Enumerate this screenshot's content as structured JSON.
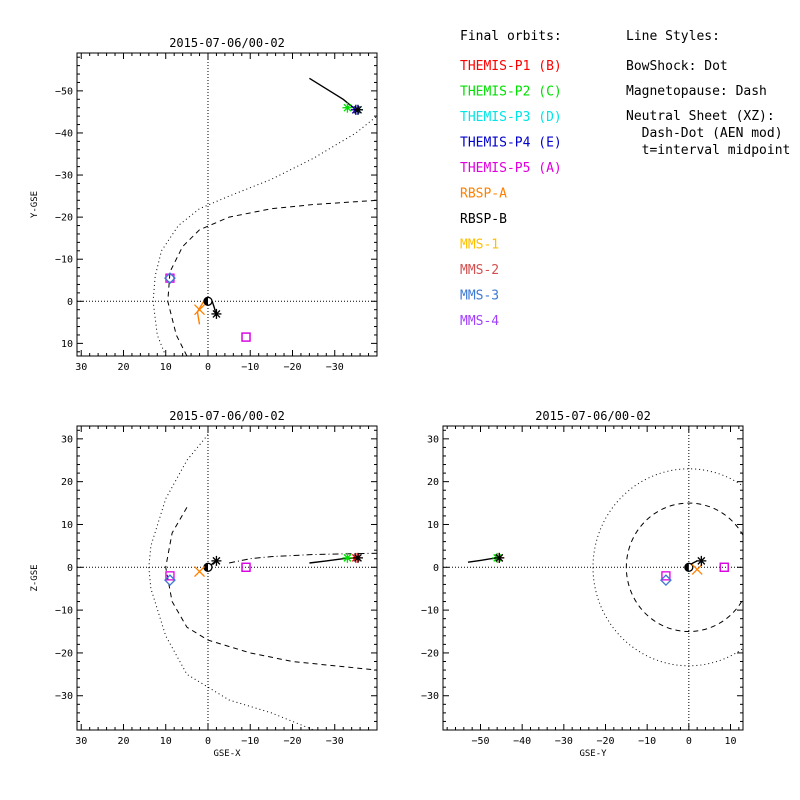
{
  "legend": {
    "orbits_title": "Final orbits:",
    "styles_title": "Line Styles:",
    "spacecraft": [
      {
        "label": "THEMIS-P1 (B)",
        "color": "#ff0000"
      },
      {
        "label": "THEMIS-P2 (C)",
        "color": "#00e000"
      },
      {
        "label": "THEMIS-P3 (D)",
        "color": "#00e5e5"
      },
      {
        "label": "THEMIS-P4 (E)",
        "color": "#0000cc"
      },
      {
        "label": "THEMIS-P5 (A)",
        "color": "#e000e0"
      },
      {
        "label": "RBSP-A",
        "color": "#ff8000"
      },
      {
        "label": "RBSP-B",
        "color": "#000000"
      },
      {
        "label": "MMS-1",
        "color": "#ffbf00"
      },
      {
        "label": "MMS-2",
        "color": "#d25050"
      },
      {
        "label": "MMS-3",
        "color": "#3c7ad4"
      },
      {
        "label": "MMS-4",
        "color": "#a040ff"
      }
    ],
    "styles": [
      "BowShock: Dot",
      "Magnetopause: Dash",
      "Neutral Sheet (XZ):",
      "  Dash-Dot (AEN mod)",
      "  t=interval midpoint"
    ]
  },
  "chart_data": [
    {
      "id": "xy",
      "type": "scatter",
      "title": "2015-07-06/00-02",
      "xlabel": "",
      "ylabel": "Y-GSE",
      "xlim": [
        31,
        -40
      ],
      "ylim": [
        13,
        -59
      ],
      "xticks": [
        30,
        20,
        10,
        0,
        -10,
        -20,
        -30
      ],
      "yticks": [
        -50,
        -40,
        -30,
        -20,
        -10,
        0,
        10
      ],
      "grid": "dotted zero lines",
      "boundaries": {
        "bowshock": {
          "style": "dot",
          "points": [
            [
              10.0,
              13.0
            ],
            [
              12.0,
              8.0
            ],
            [
              13.0,
              0.0
            ],
            [
              12.5,
              -6.0
            ],
            [
              11.0,
              -12.0
            ],
            [
              7.0,
              -18.0
            ],
            [
              2.0,
              -22.0
            ],
            [
              -5.0,
              -25.0
            ],
            [
              -15.0,
              -29.0
            ],
            [
              -25.0,
              -34.0
            ],
            [
              -35.0,
              -40.0
            ],
            [
              -40.0,
              -44.0
            ]
          ]
        },
        "magnetopause": {
          "style": "dash",
          "points": [
            [
              5.0,
              13.0
            ],
            [
              7.5,
              8.0
            ],
            [
              9.5,
              0.0
            ],
            [
              9.0,
              -7.0
            ],
            [
              6.0,
              -13.0
            ],
            [
              2.0,
              -17.0
            ],
            [
              -5.0,
              -20.0
            ],
            [
              -15.0,
              -22.0
            ],
            [
              -25.0,
              -23.0
            ],
            [
              -40.0,
              -24.0
            ]
          ]
        }
      },
      "tracks": [
        {
          "name": "THEMIS-P5 (A)",
          "color": "#000000",
          "points": [
            [
              -24.0,
              -53.0
            ],
            [
              -28.0,
              -50.5
            ],
            [
              -32.0,
              -48.0
            ],
            [
              -35.0,
              -45.5
            ]
          ]
        },
        {
          "name": "RBSP-A",
          "color": "#ff8000",
          "points": [
            [
              1.0,
              0.0
            ],
            [
              2.5,
              2.5
            ],
            [
              2.0,
              5.5
            ]
          ]
        },
        {
          "name": "RBSP-B",
          "color": "#000000",
          "points": [
            [
              -1.0,
              0.0
            ],
            [
              -1.5,
              1.5
            ],
            [
              -2.0,
              3.5
            ]
          ]
        }
      ],
      "markers": [
        {
          "name": "THEMIS-P1 (B)",
          "x": -35.0,
          "y": -45.5,
          "symbol": "asterisk",
          "color": "#ff0000"
        },
        {
          "name": "THEMIS-P2 (C)",
          "x": -33.0,
          "y": -46.0,
          "symbol": "asterisk",
          "color": "#00e000"
        },
        {
          "name": "THEMIS-P3 (D)",
          "x": -35.5,
          "y": -45.5,
          "symbol": "asterisk",
          "color": "#00e5e5"
        },
        {
          "name": "THEMIS-P4 (E)",
          "x": -35.0,
          "y": -45.5,
          "symbol": "asterisk",
          "color": "#0000cc"
        },
        {
          "name": "THEMIS-P5 (A)",
          "x": -35.5,
          "y": -45.5,
          "symbol": "asterisk",
          "color": "#000000"
        },
        {
          "name": "RBSP-A",
          "x": 2.0,
          "y": 2.0,
          "symbol": "x",
          "color": "#ff8000"
        },
        {
          "name": "RBSP-B",
          "x": -2.0,
          "y": 3.0,
          "symbol": "asterisk",
          "color": "#000000"
        },
        {
          "name": "MMS-1",
          "x": 9.0,
          "y": -5.5,
          "symbol": "square",
          "color": "#e000e0"
        },
        {
          "name": "MMS-2",
          "x": 9.0,
          "y": -5.5,
          "symbol": "diamond",
          "color": "#3c7ad4"
        },
        {
          "name": "MMS-3",
          "x": -9.0,
          "y": 8.5,
          "symbol": "square",
          "color": "#a040ff"
        },
        {
          "name": "MMS-4",
          "x": -9.0,
          "y": 8.5,
          "symbol": "square",
          "color": "#e000e0"
        }
      ],
      "earth": {
        "x": 0,
        "y": 0
      }
    },
    {
      "id": "xz",
      "type": "scatter",
      "title": "2015-07-06/00-02",
      "xlabel": "GSE-X",
      "ylabel": "Z-GSE",
      "xlim": [
        31,
        -40
      ],
      "ylim": [
        -38,
        33
      ],
      "xticks": [
        30,
        20,
        10,
        0,
        -10,
        -20,
        -30
      ],
      "yticks": [
        -30,
        -20,
        -10,
        0,
        10,
        20,
        30
      ],
      "grid": "dotted zero lines",
      "boundaries": {
        "bowshock": {
          "style": "dot",
          "points": [
            [
              0.0,
              31.0
            ],
            [
              5.0,
              25.0
            ],
            [
              10.0,
              16.0
            ],
            [
              13.5,
              5.0
            ],
            [
              14.0,
              0.0
            ],
            [
              13.5,
              -5.0
            ],
            [
              10.0,
              -16.0
            ],
            [
              5.0,
              -25.0
            ],
            [
              -5.0,
              -31.0
            ],
            [
              -15.0,
              -34.0
            ],
            [
              -25.0,
              -38.0
            ]
          ]
        },
        "magnetopause": {
          "style": "dash",
          "points": [
            [
              5.0,
              14.0
            ],
            [
              8.5,
              8.0
            ],
            [
              10.0,
              0.0
            ],
            [
              8.5,
              -8.0
            ],
            [
              5.0,
              -14.0
            ],
            [
              0.0,
              -17.0
            ],
            [
              -10.0,
              -20.0
            ],
            [
              -20.0,
              -22.0
            ],
            [
              -40.0,
              -24.0
            ]
          ]
        },
        "neutral_sheet": {
          "style": "dashdot",
          "points": [
            [
              -5.0,
              1.0
            ],
            [
              -10.0,
              2.0
            ],
            [
              -15.0,
              2.5
            ],
            [
              -25.0,
              3.0
            ],
            [
              -40.0,
              3.3
            ]
          ]
        }
      },
      "tracks": [
        {
          "name": "THEMIS-P5 (A)",
          "color": "#000000",
          "points": [
            [
              -24.0,
              1.0
            ],
            [
              -28.0,
              1.5
            ],
            [
              -32.0,
              2.0
            ],
            [
              -35.0,
              2.2
            ]
          ]
        },
        {
          "name": "RBSP-B",
          "color": "#000000",
          "points": [
            [
              -0.5,
              0.0
            ],
            [
              -1.0,
              0.8
            ],
            [
              -2.0,
              1.5
            ]
          ]
        }
      ],
      "markers": [
        {
          "name": "THEMIS-P1 (B)",
          "x": -35.0,
          "y": 2.2,
          "symbol": "asterisk",
          "color": "#ff0000"
        },
        {
          "name": "THEMIS-P2 (C)",
          "x": -33.0,
          "y": 2.2,
          "symbol": "asterisk",
          "color": "#00e000"
        },
        {
          "name": "THEMIS-P5 (A)",
          "x": -35.5,
          "y": 2.2,
          "symbol": "asterisk",
          "color": "#000000"
        },
        {
          "name": "RBSP-A",
          "x": 2.0,
          "y": -1.0,
          "symbol": "x",
          "color": "#ff8000"
        },
        {
          "name": "RBSP-B",
          "x": -2.0,
          "y": 1.5,
          "symbol": "asterisk",
          "color": "#000000"
        },
        {
          "name": "MMS-1",
          "x": 9.0,
          "y": -2.0,
          "symbol": "square",
          "color": "#e000e0"
        },
        {
          "name": "MMS-2",
          "x": 9.0,
          "y": -3.0,
          "symbol": "diamond",
          "color": "#3c7ad4"
        },
        {
          "name": "MMS-3",
          "x": -9.0,
          "y": 0.0,
          "symbol": "square",
          "color": "#a040ff"
        },
        {
          "name": "MMS-4",
          "x": -9.0,
          "y": 0.0,
          "symbol": "square",
          "color": "#e000e0"
        }
      ],
      "earth": {
        "x": 0,
        "y": 0
      }
    },
    {
      "id": "yz",
      "type": "scatter",
      "title": "2015-07-06/00-02",
      "xlabel": "GSE-Y",
      "ylabel": "",
      "xlim": [
        -59,
        13
      ],
      "ylim": [
        -38,
        33
      ],
      "xticks": [
        -50,
        -40,
        -30,
        -20,
        -10,
        0,
        10
      ],
      "yticks": [
        -30,
        -20,
        -10,
        0,
        10,
        20,
        30
      ],
      "grid": "dotted zero lines",
      "boundaries": {
        "bowshock": {
          "style": "dot",
          "circle": {
            "cx": 0,
            "cy": 0,
            "r": 23
          }
        },
        "magnetopause": {
          "style": "dash",
          "circle": {
            "cx": 0,
            "cy": 0,
            "r": 15
          }
        }
      },
      "tracks": [
        {
          "name": "THEMIS-P5 (A)",
          "color": "#000000",
          "points": [
            [
              -53.0,
              1.2
            ],
            [
              -50.0,
              1.6
            ],
            [
              -47.5,
              2.0
            ],
            [
              -45.5,
              2.2
            ]
          ]
        },
        {
          "name": "RBSP-B",
          "color": "#000000",
          "points": [
            [
              0.0,
              0.5
            ],
            [
              1.0,
              1.0
            ],
            [
              2.0,
              1.5
            ]
          ]
        }
      ],
      "markers": [
        {
          "name": "THEMIS-P1 (B)",
          "x": -45.5,
          "y": 2.2,
          "symbol": "asterisk",
          "color": "#ff0000"
        },
        {
          "name": "THEMIS-P2 (C)",
          "x": -46.0,
          "y": 2.2,
          "symbol": "asterisk",
          "color": "#00e000"
        },
        {
          "name": "THEMIS-P5 (A)",
          "x": -45.5,
          "y": 2.2,
          "symbol": "asterisk",
          "color": "#000000"
        },
        {
          "name": "RBSP-A",
          "x": 2.0,
          "y": -0.5,
          "symbol": "x",
          "color": "#ff8000"
        },
        {
          "name": "RBSP-B",
          "x": 3.0,
          "y": 1.5,
          "symbol": "asterisk",
          "color": "#000000"
        },
        {
          "name": "MMS-1",
          "x": -5.5,
          "y": -2.0,
          "symbol": "square",
          "color": "#e000e0"
        },
        {
          "name": "MMS-2",
          "x": -5.5,
          "y": -3.0,
          "symbol": "diamond",
          "color": "#3c7ad4"
        },
        {
          "name": "MMS-3",
          "x": 8.5,
          "y": 0.0,
          "symbol": "square",
          "color": "#a040ff"
        },
        {
          "name": "MMS-4",
          "x": 8.5,
          "y": 0.0,
          "symbol": "square",
          "color": "#e000e0"
        }
      ],
      "earth": {
        "x": 0,
        "y": 0
      }
    }
  ]
}
